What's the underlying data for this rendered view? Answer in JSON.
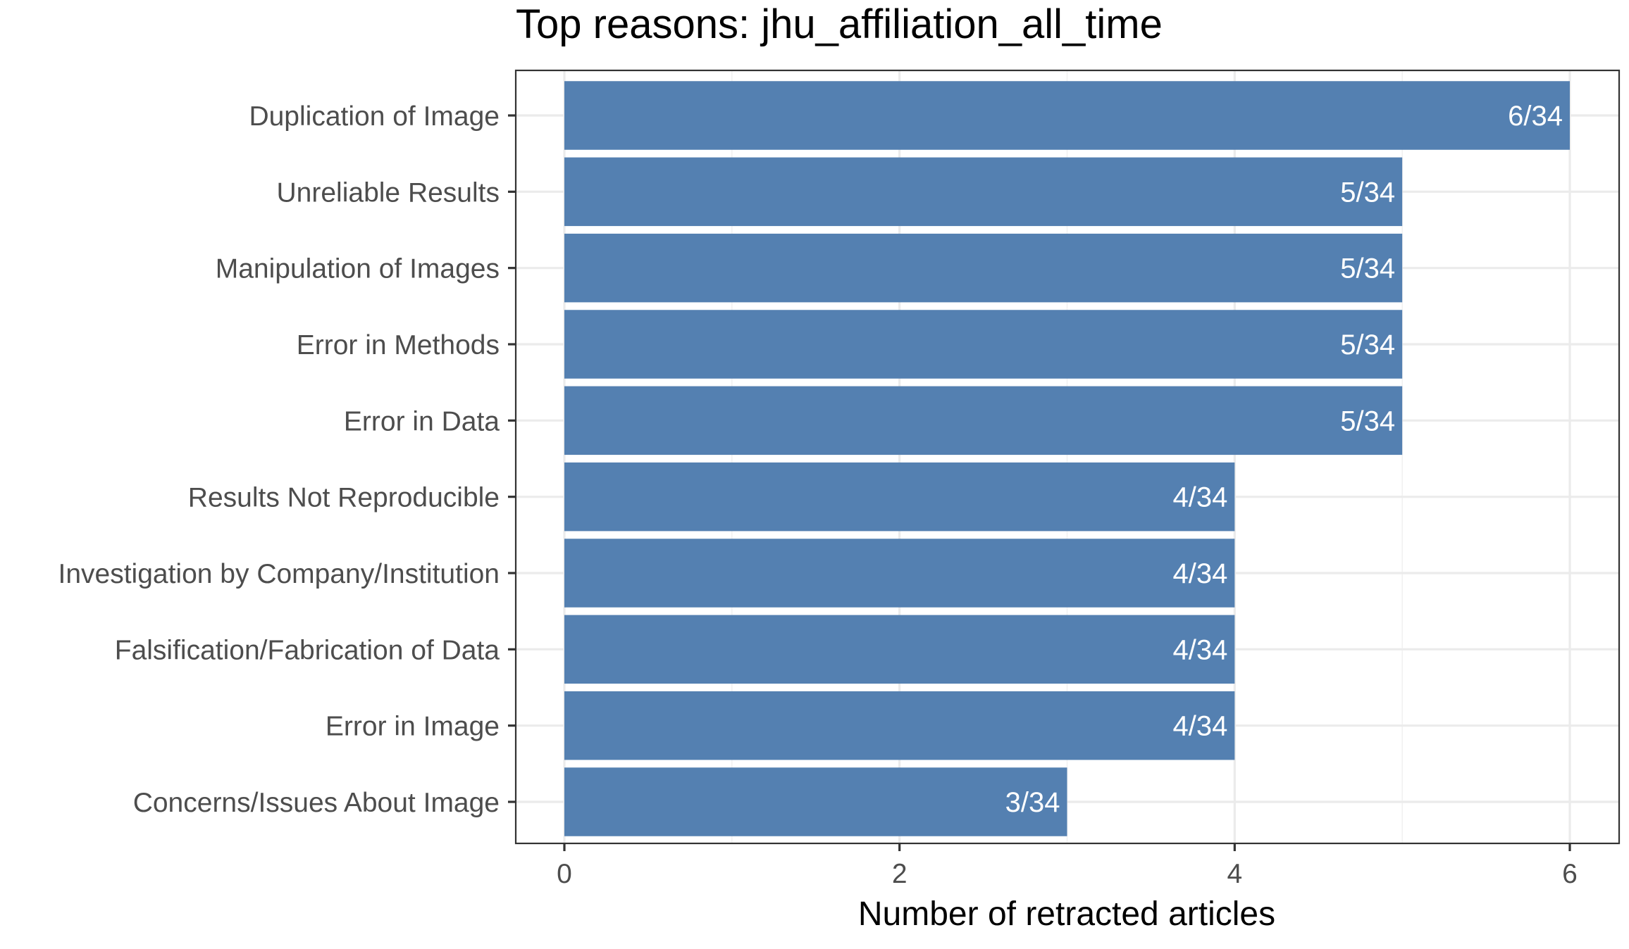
{
  "chart_data": {
    "type": "bar",
    "orientation": "horizontal",
    "title": "Top reasons: jhu_affiliation_all_time",
    "xlabel": "Number of retracted articles",
    "ylabel": "",
    "xlim": [
      0,
      6
    ],
    "x_ticks": [
      0,
      2,
      4,
      6
    ],
    "grid": true,
    "bar_color": "#5480b1",
    "categories": [
      "Duplication of Image",
      "Unreliable Results",
      "Manipulation of Images",
      "Error in Methods",
      "Error in Data",
      "Results Not Reproducible",
      "Investigation by Company/Institution",
      "Falsification/Fabrication of Data",
      "Error in Image",
      "Concerns/Issues About Image"
    ],
    "values": [
      6,
      5,
      5,
      5,
      5,
      4,
      4,
      4,
      4,
      3
    ],
    "value_labels": [
      "6/34",
      "5/34",
      "5/34",
      "5/34",
      "5/34",
      "4/34",
      "4/34",
      "4/34",
      "4/34",
      "3/34"
    ]
  }
}
